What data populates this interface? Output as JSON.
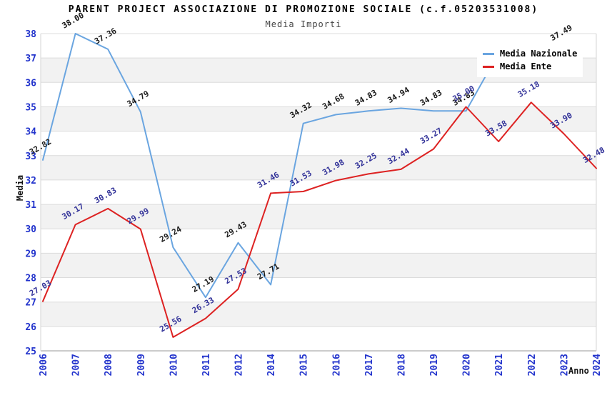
{
  "header": {
    "title": "PARENT PROJECT ASSOCIAZIONE DI PROMOZIONE SOCIALE (c.f.05203531008)",
    "subtitle": "Media Importi"
  },
  "chart_data": {
    "type": "line",
    "title": "PARENT PROJECT ASSOCIAZIONE DI PROMOZIONE SOCIALE (c.f.05203531008)",
    "subtitle": "Media Importi",
    "xlabel": "Anno",
    "ylabel": "Media",
    "ylim": [
      25,
      38
    ],
    "y_ticks": [
      25,
      26,
      27,
      28,
      29,
      30,
      31,
      32,
      33,
      34,
      35,
      36,
      37,
      38
    ],
    "grid": "horizontal gridlines with alternating gray bands",
    "legend_position": "top-right",
    "categories": [
      "2006",
      "2007",
      "2008",
      "2009",
      "2010",
      "2011",
      "2012",
      "2014",
      "2015",
      "2016",
      "2017",
      "2018",
      "2019",
      "2020",
      "2021",
      "2022",
      "2023",
      "2024"
    ],
    "series": [
      {
        "name": "Media Nazionale",
        "color": "#6aa5e0",
        "label_color": "#1a1a1a",
        "values": [
          32.82,
          38.0,
          37.36,
          34.79,
          29.24,
          27.19,
          29.43,
          27.71,
          34.32,
          34.68,
          34.83,
          34.94,
          34.83,
          34.83,
          37.2,
          37.4,
          37.49,
          null
        ],
        "point_labels": [
          "32.82",
          "38.00",
          "37.36",
          "34.79",
          "29.24",
          "27.19",
          "29.43",
          "27.71",
          "34.32",
          "34.68",
          "34.83",
          "34.94",
          "34.83",
          "34.83",
          "",
          "",
          "37.49",
          ""
        ]
      },
      {
        "name": "Media Ente",
        "color": "#dd2222",
        "label_color": "#333399",
        "values": [
          27.03,
          30.17,
          30.83,
          29.99,
          25.56,
          26.33,
          27.53,
          31.46,
          31.53,
          31.98,
          32.25,
          32.44,
          33.27,
          35.0,
          33.58,
          35.18,
          33.9,
          32.48
        ],
        "point_labels": [
          "27.03",
          "30.17",
          "30.83",
          "29.99",
          "25.56",
          "26.33",
          "27.53",
          "31.46",
          "31.53",
          "31.98",
          "32.25",
          "32.44",
          "33.27",
          "35.00",
          "33.58",
          "35.18",
          "33.90",
          "32.48"
        ]
      }
    ],
    "style": {
      "tick_color": "#2233cc",
      "band_color": "#f2f2f2",
      "grid_color": "#dcdcdc",
      "axis_color": "#999999",
      "plot_border_color": "#d6d6d6",
      "title_color": "#000000",
      "subtitle_color": "#444444"
    }
  }
}
